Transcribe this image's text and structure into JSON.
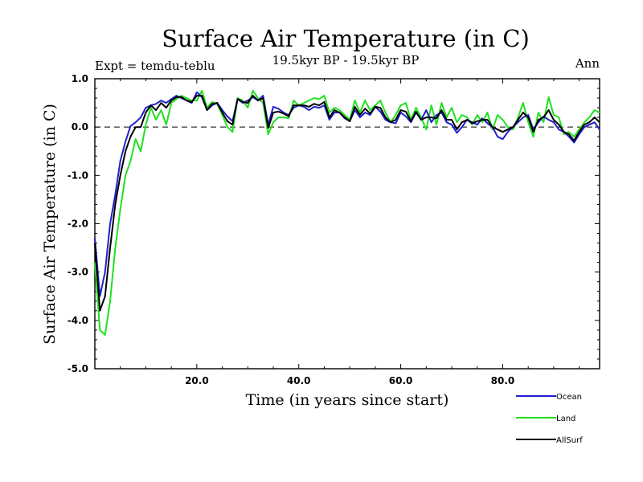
{
  "chart_data": {
    "type": "line",
    "title": "Surface Air Temperature (in C)",
    "subtitle": "19.5kyr BP - 19.5kyr BP",
    "left_annotation": "Expt = temdu-teblu",
    "right_annotation": "Ann",
    "xlabel": "Time (in years since start)",
    "ylabel": "Surface Air Temperature (in C)",
    "xlim": [
      0,
      99
    ],
    "ylim": [
      -5.0,
      1.0
    ],
    "x_ticks": [
      20,
      40,
      60,
      80
    ],
    "x_tick_labels": [
      "20.0",
      "40.0",
      "60.0",
      "80.0"
    ],
    "y_ticks": [
      -5,
      -4,
      -3,
      -2,
      -1,
      0,
      1
    ],
    "y_tick_labels": [
      "-5.0",
      "-4.0",
      "-3.0",
      "-2.0",
      "-1.0",
      "0.0",
      "1.0"
    ],
    "reference_line": 0,
    "x": [
      0,
      1,
      2,
      3,
      4,
      5,
      6,
      7,
      8,
      9,
      10,
      11,
      12,
      13,
      14,
      15,
      16,
      17,
      18,
      19,
      20,
      21,
      22,
      23,
      24,
      25,
      26,
      27,
      28,
      29,
      30,
      31,
      32,
      33,
      34,
      35,
      36,
      37,
      38,
      39,
      40,
      41,
      42,
      43,
      44,
      45,
      46,
      47,
      48,
      49,
      50,
      51,
      52,
      53,
      54,
      55,
      56,
      57,
      58,
      59,
      60,
      61,
      62,
      63,
      64,
      65,
      66,
      67,
      68,
      69,
      70,
      71,
      72,
      73,
      74,
      75,
      76,
      77,
      78,
      79,
      80,
      81,
      82,
      83,
      84,
      85,
      86,
      87,
      88,
      89,
      90,
      91,
      92,
      93,
      94,
      95,
      96,
      97,
      98,
      99
    ],
    "series": [
      {
        "name": "Ocean",
        "color": "#1f1fcf",
        "values": [
          -2.3,
          -3.5,
          -3.0,
          -2.0,
          -1.4,
          -0.7,
          -0.3,
          0.02,
          0.1,
          0.2,
          0.4,
          0.45,
          0.48,
          0.55,
          0.5,
          0.58,
          0.65,
          0.6,
          0.55,
          0.5,
          0.72,
          0.62,
          0.35,
          0.45,
          0.5,
          0.35,
          0.22,
          0.12,
          0.58,
          0.5,
          0.55,
          0.62,
          0.55,
          0.65,
          0.05,
          0.42,
          0.38,
          0.3,
          0.25,
          0.4,
          0.45,
          0.42,
          0.35,
          0.42,
          0.4,
          0.45,
          0.15,
          0.3,
          0.3,
          0.18,
          0.12,
          0.35,
          0.2,
          0.3,
          0.25,
          0.42,
          0.32,
          0.15,
          0.1,
          0.08,
          0.3,
          0.22,
          0.1,
          0.3,
          0.15,
          0.35,
          0.1,
          0.25,
          0.3,
          0.1,
          0.05,
          -0.12,
          0.0,
          0.15,
          0.1,
          0.05,
          0.18,
          0.08,
          0.0,
          -0.2,
          -0.25,
          -0.1,
          0.0,
          0.1,
          0.2,
          0.25,
          -0.05,
          0.1,
          0.22,
          0.15,
          0.1,
          -0.05,
          -0.1,
          -0.2,
          -0.32,
          -0.15,
          0.0,
          0.05,
          0.1,
          -0.05
        ]
      },
      {
        "name": "Land",
        "color": "#20e020",
        "values": [
          -2.8,
          -4.2,
          -4.3,
          -3.6,
          -2.5,
          -1.7,
          -1.0,
          -0.7,
          -0.25,
          -0.5,
          0.05,
          0.4,
          0.15,
          0.35,
          0.05,
          0.5,
          0.58,
          0.65,
          0.6,
          0.55,
          0.55,
          0.75,
          0.4,
          0.52,
          0.48,
          0.25,
          0.0,
          -0.1,
          0.6,
          0.55,
          0.4,
          0.75,
          0.6,
          0.5,
          -0.15,
          0.1,
          0.2,
          0.2,
          0.18,
          0.55,
          0.45,
          0.5,
          0.55,
          0.6,
          0.58,
          0.65,
          0.3,
          0.4,
          0.35,
          0.25,
          0.15,
          0.55,
          0.3,
          0.55,
          0.35,
          0.45,
          0.55,
          0.3,
          0.1,
          0.25,
          0.45,
          0.5,
          0.15,
          0.4,
          0.2,
          -0.05,
          0.45,
          0.05,
          0.5,
          0.2,
          0.4,
          0.1,
          0.25,
          0.2,
          0.05,
          0.25,
          0.1,
          0.3,
          -0.05,
          0.25,
          0.15,
          0.0,
          -0.05,
          0.2,
          0.5,
          0.1,
          -0.2,
          0.3,
          0.1,
          0.62,
          0.25,
          0.2,
          -0.15,
          -0.1,
          -0.2,
          -0.05,
          0.1,
          0.2,
          0.35,
          0.3
        ]
      },
      {
        "name": "AllSurf",
        "color": "#000000",
        "values": [
          -2.4,
          -3.8,
          -3.5,
          -2.5,
          -1.6,
          -1.0,
          -0.5,
          -0.2,
          0.0,
          0.0,
          0.3,
          0.45,
          0.35,
          0.5,
          0.4,
          0.55,
          0.62,
          0.62,
          0.55,
          0.52,
          0.65,
          0.65,
          0.35,
          0.48,
          0.5,
          0.3,
          0.12,
          0.05,
          0.58,
          0.52,
          0.5,
          0.65,
          0.55,
          0.6,
          -0.02,
          0.3,
          0.32,
          0.28,
          0.22,
          0.45,
          0.45,
          0.45,
          0.42,
          0.48,
          0.45,
          0.52,
          0.2,
          0.35,
          0.3,
          0.2,
          0.12,
          0.42,
          0.25,
          0.38,
          0.28,
          0.42,
          0.4,
          0.2,
          0.1,
          0.15,
          0.35,
          0.32,
          0.12,
          0.32,
          0.15,
          0.2,
          0.2,
          0.18,
          0.35,
          0.15,
          0.15,
          -0.05,
          0.1,
          0.15,
          0.08,
          0.12,
          0.15,
          0.15,
          0.0,
          -0.05,
          -0.1,
          -0.05,
          0.0,
          0.15,
          0.3,
          0.2,
          -0.1,
          0.15,
          0.2,
          0.35,
          0.15,
          0.05,
          -0.1,
          -0.15,
          -0.28,
          -0.1,
          0.05,
          0.1,
          0.2,
          0.1
        ]
      }
    ],
    "legend_position": "bottom-right"
  }
}
